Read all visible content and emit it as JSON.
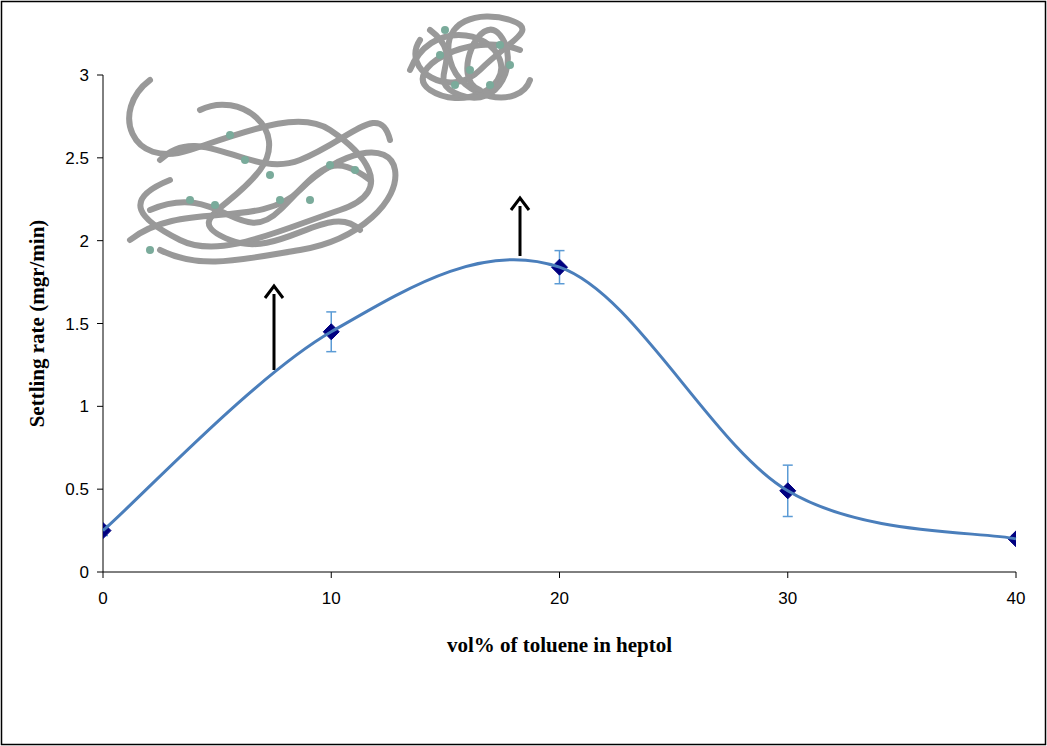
{
  "chart_data": {
    "type": "line",
    "x_label": "vol% of toluene in heptol",
    "y_label": "Settling rate (mgr/min)",
    "x": [
      0,
      10,
      20,
      30,
      40
    ],
    "values": [
      0.25,
      1.45,
      1.84,
      0.49,
      0.2
    ],
    "errors": [
      0.03,
      0.12,
      0.1,
      0.155,
      0.02
    ],
    "color": "#4a7ebb",
    "marker": "diamond",
    "line_style": "solid",
    "xlim": [
      0,
      40
    ],
    "xticks": [
      0,
      10,
      20,
      30,
      40
    ],
    "ylim": [
      0,
      3
    ],
    "yticks": [
      0,
      0.5,
      1,
      1.5,
      2,
      2.5,
      3
    ],
    "grid": false
  }
}
